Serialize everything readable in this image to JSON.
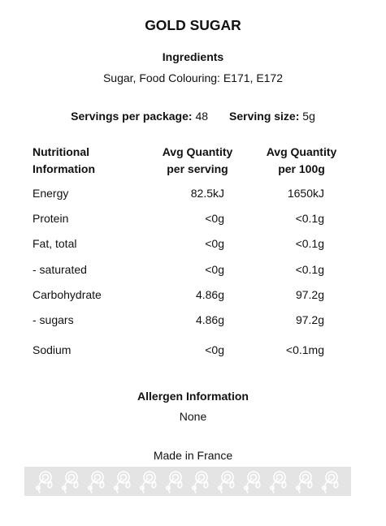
{
  "product": {
    "name": "GOLD SUGAR"
  },
  "ingredients": {
    "heading": "Ingredients",
    "text": "Sugar, Food Colouring: E171, E172"
  },
  "servings": {
    "per_package_label": "Servings per package:",
    "per_package_value": "48",
    "size_label": "Serving size:",
    "size_value": "5g"
  },
  "nutrition": {
    "headers": {
      "name": [
        "Nutritional",
        "Information"
      ],
      "per_serving": [
        "Avg Quantity",
        "per serving"
      ],
      "per_100g": [
        "Avg Quantity",
        "per 100g"
      ]
    },
    "rows": [
      {
        "name": "Energy",
        "per_serving": "82.5kJ",
        "per_100g": "1650kJ"
      },
      {
        "name": "Protein",
        "per_serving": "<0g",
        "per_100g": "<0.1g"
      },
      {
        "name": "Fat, total",
        "per_serving": "<0g",
        "per_100g": "<0.1g"
      },
      {
        "name": "- saturated",
        "per_serving": "<0g",
        "per_100g": "<0.1g"
      },
      {
        "name": "Carbohydrate",
        "per_serving": "4.86g",
        "per_100g": "97.2g"
      },
      {
        "name": "- sugars",
        "per_serving": "4.86g",
        "per_100g": "97.2g"
      },
      {
        "name": "Sodium",
        "per_serving": "<0g",
        "per_100g": "<0.1mg"
      }
    ]
  },
  "allergen": {
    "heading": "Allergen Information",
    "text": "None"
  },
  "origin": {
    "text": "Made in France"
  },
  "decoration": {
    "band_icon": "rose-flower-icon",
    "band_color": "#e4e4e4",
    "icon_color": "#ffffff"
  }
}
